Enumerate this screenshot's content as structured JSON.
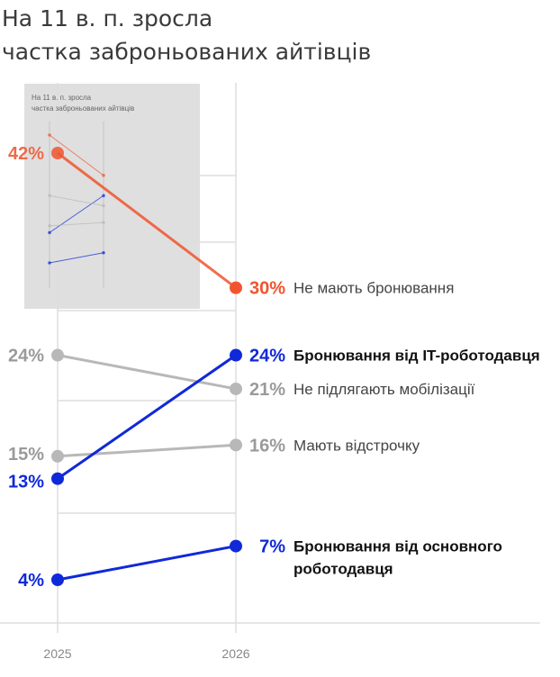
{
  "title": {
    "line1": "На 11 в. п. зросла",
    "line2": "частка заброньованих айтівців"
  },
  "thumbnail": {
    "title_line1": "На 11 в. п. зросла",
    "title_line2": "частка заброньованих айтівців"
  },
  "chart_data": {
    "type": "line",
    "title": "На 11 в. п. зросла частка заброньованих айтівців",
    "x": [
      "2025",
      "2026"
    ],
    "ylim": [
      0,
      45
    ],
    "grid": true,
    "series": [
      {
        "name": "Не мають бронювання",
        "values": [
          42,
          30
        ],
        "color": "#f0552f",
        "highlight": true,
        "bold": false
      },
      {
        "name": "Бронювання від IT-роботодавця",
        "values": [
          13,
          24
        ],
        "color": "#1029d8",
        "highlight": true,
        "bold": true
      },
      {
        "name": "Не підлягають мобілізації",
        "values": [
          24,
          21
        ],
        "color": "#b8b8b8",
        "highlight": false,
        "bold": false
      },
      {
        "name": "Мають відстрочку",
        "values": [
          15,
          16
        ],
        "color": "#b8b8b8",
        "highlight": false,
        "bold": false
      },
      {
        "name": "Бронювання від основного роботодавця",
        "values": [
          4,
          7
        ],
        "color": "#1029d8",
        "highlight": true,
        "bold": true,
        "name_lines": [
          "Бронювання від основного",
          "роботодавця"
        ]
      }
    ]
  }
}
